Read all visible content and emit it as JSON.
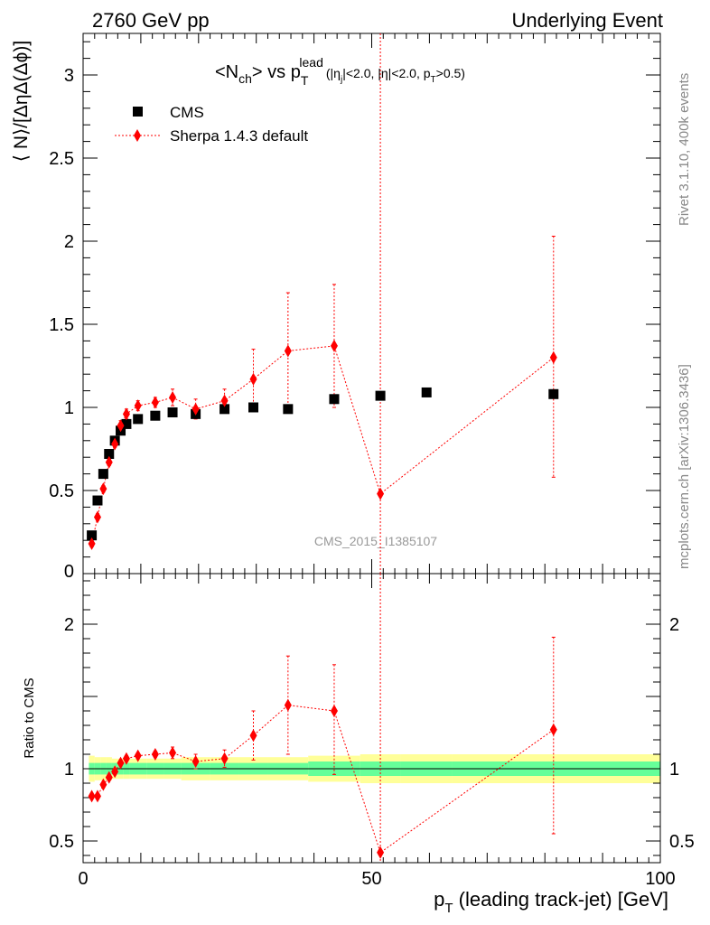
{
  "header": {
    "left": "2760 GeV pp",
    "right": "Underlying Event"
  },
  "side_texts": {
    "rivet": "Rivet 3.1.10,  400k events",
    "mcplots": "mcplots.cern.ch [arXiv:1306.3436]"
  },
  "watermark": "CMS_2015_I1385107",
  "chart_data": [
    {
      "type": "scatter",
      "panel": "main",
      "ylabel": "⟨ N⟩/[ΔηΔ(Δϕ)]",
      "title_parts": {
        "n": "<N",
        "n_sub": "ch",
        "vs": "> vs p",
        "p_sup": "lead",
        "p_sub": "T",
        "cuts_a": "(|η",
        "cuts_a_sub": "j",
        "cuts_b": "|<2.0, |η|<2.0, p",
        "cuts_b_sub": "T",
        "cuts_c": ">0.5)"
      },
      "xlim": [
        0,
        100
      ],
      "ylim": [
        0,
        3.25
      ],
      "x_ticks": [
        0,
        50,
        100
      ],
      "y_ticks": [
        {
          "v": 0.5,
          "label": "0.5"
        },
        {
          "v": 1,
          "label": "1"
        },
        {
          "v": 1.5,
          "label": "1.5"
        },
        {
          "v": 2,
          "label": "2"
        },
        {
          "v": 2.5,
          "label": "2.5"
        },
        {
          "v": 3,
          "label": "3"
        }
      ],
      "y_zero_label": "0",
      "legend": {
        "position": "top-left",
        "data_label": "CMS",
        "mc_label": "Sherpa 1.4.3 default"
      },
      "series": [
        {
          "name": "CMS",
          "color": "#000000",
          "marker": "square",
          "x": [
            1.5,
            2.5,
            3.5,
            4.5,
            5.5,
            6.5,
            7.5,
            9.5,
            12.5,
            15.5,
            19.5,
            24.5,
            29.5,
            35.5,
            43.5,
            51.5,
            59.5,
            81.5
          ],
          "y": [
            0.23,
            0.44,
            0.6,
            0.72,
            0.8,
            0.86,
            0.9,
            0.93,
            0.95,
            0.97,
            0.96,
            0.99,
            1.0,
            0.99,
            1.05,
            1.07,
            1.09,
            1.08
          ]
        },
        {
          "name": "Sherpa 1.4.3 default",
          "color": "#ff0000",
          "marker": "diamond",
          "x": [
            1.5,
            2.5,
            3.5,
            4.5,
            5.5,
            6.5,
            7.5,
            9.5,
            12.5,
            15.5,
            19.5,
            24.5,
            29.5,
            35.5,
            43.5,
            51.5,
            81.5
          ],
          "y": [
            0.18,
            0.34,
            0.51,
            0.67,
            0.78,
            0.89,
            0.96,
            1.01,
            1.03,
            1.06,
            0.99,
            1.04,
            1.17,
            1.34,
            1.37,
            0.48,
            1.3
          ],
          "err_low": [
            0.02,
            0.02,
            0.02,
            0.02,
            0.02,
            0.03,
            0.03,
            0.03,
            0.03,
            0.05,
            0.06,
            0.07,
            0.18,
            0.35,
            0.37,
            0.48,
            0.72
          ],
          "err_high": [
            0.02,
            0.02,
            0.02,
            0.02,
            0.02,
            0.03,
            0.03,
            0.03,
            0.03,
            0.05,
            0.06,
            0.07,
            0.18,
            0.35,
            0.37,
            2.77,
            0.73
          ]
        }
      ]
    },
    {
      "type": "scatter",
      "panel": "ratio",
      "ylabel": "Ratio to CMS",
      "xlabel_main": "p",
      "xlabel_sub": "T",
      "xlabel_rest": " (leading track-jet) [GeV]",
      "xlim": [
        0,
        100
      ],
      "ylim": [
        0.35,
        2.35
      ],
      "x_ticks": [
        {
          "v": 0,
          "label": "0"
        },
        {
          "v": 50,
          "label": "50"
        },
        {
          "v": 100,
          "label": "100"
        }
      ],
      "y_ticks": [
        {
          "v": 0.5,
          "label": "0.5"
        },
        {
          "v": 1,
          "label": "1"
        },
        {
          "v": 2,
          "label": "2"
        }
      ],
      "band_colors": {
        "inner": "#66ff99",
        "outer": "#ffff99"
      },
      "bands": {
        "x_edges": [
          1,
          2,
          3,
          4,
          5,
          6,
          7,
          8,
          11,
          14,
          17,
          22,
          27,
          32,
          39,
          48,
          55,
          64,
          100
        ],
        "inner": [
          0.04,
          0.04,
          0.04,
          0.04,
          0.04,
          0.04,
          0.04,
          0.04,
          0.04,
          0.04,
          0.04,
          0.04,
          0.04,
          0.04,
          0.05,
          0.05,
          0.05,
          0.05
        ],
        "outer": [
          0.09,
          0.08,
          0.08,
          0.08,
          0.07,
          0.07,
          0.07,
          0.07,
          0.07,
          0.07,
          0.08,
          0.08,
          0.08,
          0.08,
          0.09,
          0.1,
          0.1,
          0.1
        ]
      },
      "series": [
        {
          "name": "Sherpa 1.4.3 default",
          "color": "#ff0000",
          "marker": "diamond",
          "x": [
            1.5,
            2.5,
            3.5,
            4.5,
            5.5,
            6.5,
            7.5,
            9.5,
            12.5,
            15.5,
            19.5,
            24.5,
            29.5,
            35.5,
            43.5,
            51.5,
            81.5
          ],
          "y": [
            0.81,
            0.81,
            0.89,
            0.94,
            0.98,
            1.04,
            1.07,
            1.09,
            1.1,
            1.11,
            1.05,
            1.07,
            1.23,
            1.44,
            1.4,
            0.42,
            1.27
          ],
          "err_low": [
            0.01,
            0.01,
            0.01,
            0.01,
            0.01,
            0.02,
            0.02,
            0.02,
            0.02,
            0.04,
            0.05,
            0.06,
            0.17,
            0.34,
            0.44,
            0.42,
            0.72
          ],
          "err_high": [
            0.01,
            0.01,
            0.01,
            0.01,
            0.01,
            0.02,
            0.02,
            0.02,
            0.02,
            0.04,
            0.05,
            0.06,
            0.17,
            0.34,
            0.32,
            2.3,
            0.64
          ]
        }
      ]
    }
  ]
}
